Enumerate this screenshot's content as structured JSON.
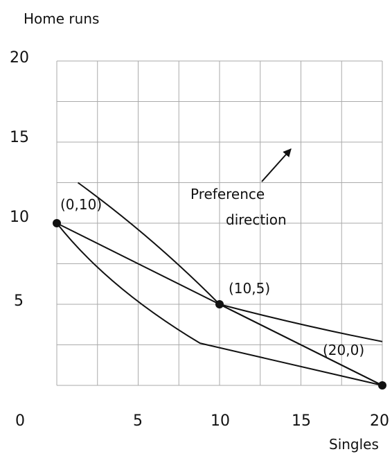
{
  "chart_data": {
    "type": "line",
    "title": "",
    "xlabel": "Singles",
    "ylabel": "Home runs",
    "xlim": [
      0,
      20
    ],
    "ylim": [
      0,
      20
    ],
    "grid": true,
    "x_ticks": [
      "0",
      "5",
      "10",
      "15",
      "20"
    ],
    "y_ticks": [
      "20",
      "15",
      "10",
      "5"
    ],
    "points": [
      {
        "label": "(0,10)",
        "x": 0,
        "y": 10
      },
      {
        "label": "(10,5)",
        "x": 10,
        "y": 5
      },
      {
        "label": "(20,0)",
        "x": 20,
        "y": 0
      }
    ],
    "series": [
      {
        "values": [
          [
            0,
            10
          ],
          [
            10,
            5
          ],
          [
            20,
            0
          ]
        ]
      },
      {
        "values": [
          [
            1.3,
            12.5
          ],
          [
            10,
            5
          ],
          [
            20,
            0
          ]
        ]
      },
      {
        "values": [
          [
            0,
            10
          ],
          [
            4,
            6
          ],
          [
            8.8,
            2.6
          ],
          [
            20,
            0
          ]
        ]
      },
      {
        "values": [
          [
            10,
            5
          ],
          [
            15,
            3.6
          ],
          [
            20,
            2.7
          ]
        ]
      }
    ],
    "annotation": {
      "line1": "Preference",
      "line2": "direction"
    }
  }
}
